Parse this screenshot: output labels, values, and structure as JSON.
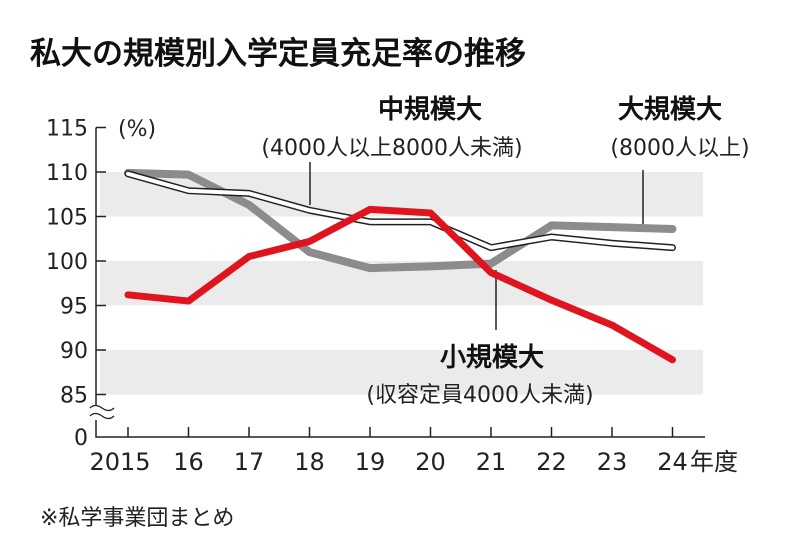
{
  "chart_data": {
    "type": "line",
    "title": "私大の規模別入学定員充足率の推移",
    "ylabel": "(%)",
    "xlabel": "年度",
    "categories": [
      "2015",
      "16",
      "17",
      "18",
      "19",
      "20",
      "21",
      "22",
      "23",
      "24"
    ],
    "yticks": [
      "115",
      "110",
      "105",
      "100",
      "95",
      "90",
      "85",
      "0"
    ],
    "ylim": [
      85,
      115
    ],
    "y_axis_break": true,
    "grid": "alternating bands",
    "series": [
      {
        "name": "小規模大",
        "note": "(収容定員4000人未満)",
        "color": "#e0141e",
        "values": [
          96.2,
          95.5,
          100.5,
          102.2,
          105.8,
          105.4,
          98.7,
          95.6,
          92.8,
          88.9
        ]
      },
      {
        "name": "中規模大",
        "note": "(4000人以上8000人未満)",
        "color": "#8c8c8c",
        "values": [
          109.9,
          109.7,
          106.3,
          101.0,
          99.2,
          99.4,
          99.7,
          104.0,
          103.8,
          103.6
        ]
      },
      {
        "name": "大規模大",
        "note": "(8000人以上)",
        "color": "#ffffff",
        "values": [
          109.8,
          107.9,
          107.6,
          105.7,
          104.4,
          104.4,
          101.5,
          102.7,
          102.0,
          101.5
        ]
      }
    ],
    "source": "※私学事業団まとめ"
  }
}
